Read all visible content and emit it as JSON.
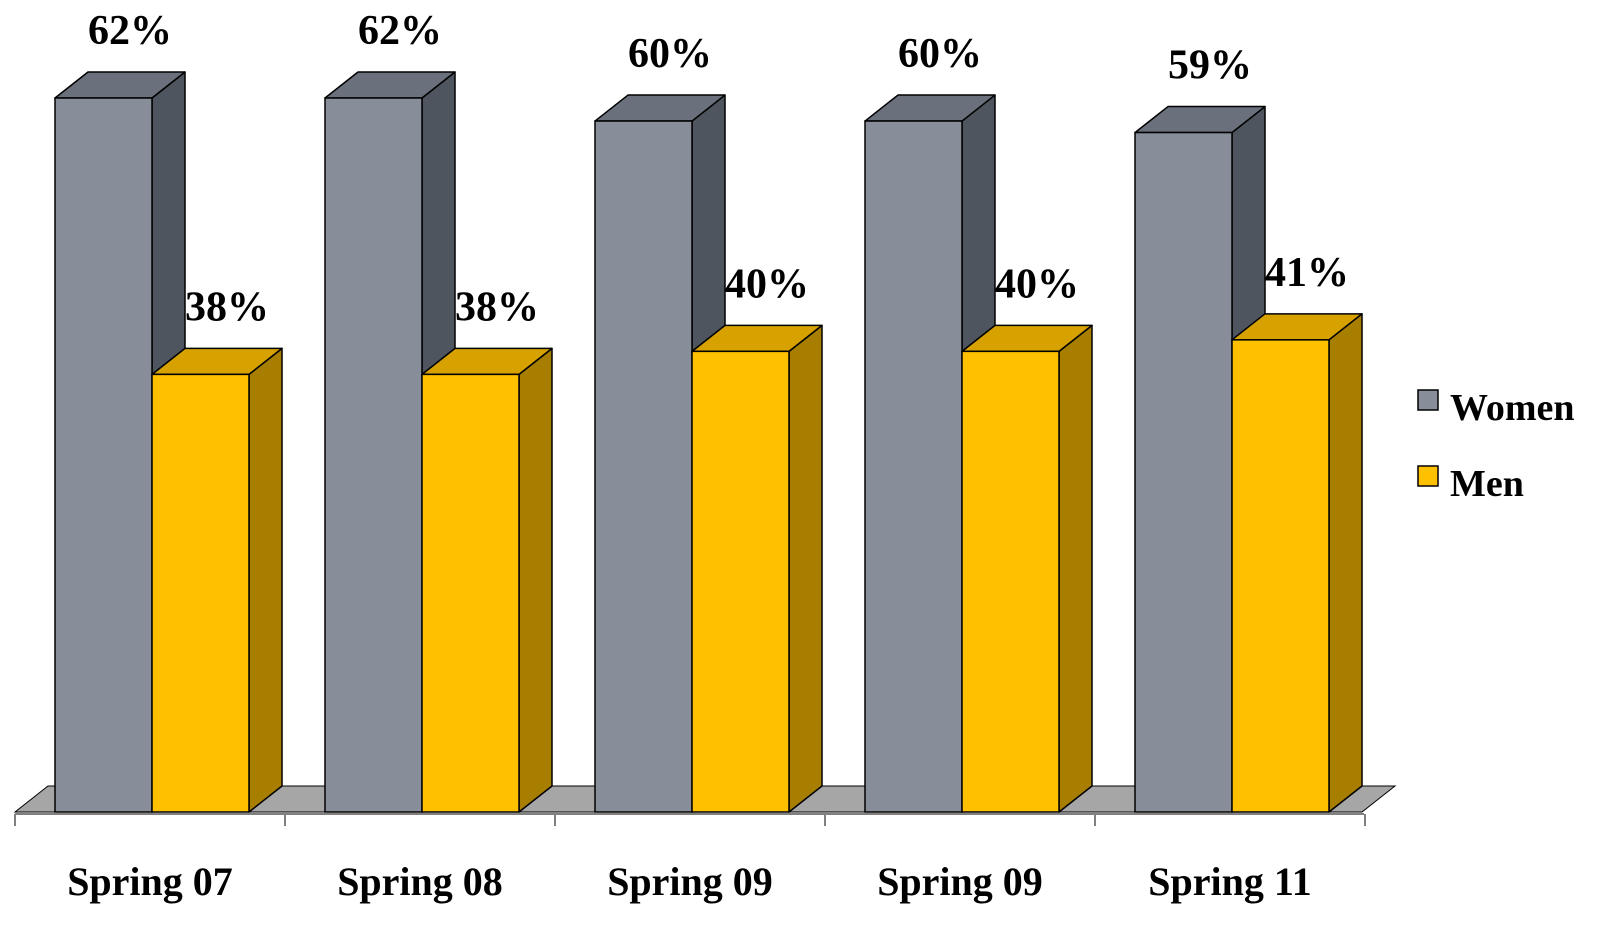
{
  "chart_data": {
    "type": "bar",
    "style": "3d-clustered-column",
    "categories": [
      "Spring 07",
      "Spring 08",
      "Spring 09",
      "Spring 09",
      "Spring 11"
    ],
    "series": [
      {
        "name": "Women",
        "values": [
          62,
          62,
          60,
          60,
          59
        ],
        "labels": [
          "62%",
          "62%",
          "60%",
          "60%",
          "59%"
        ],
        "color": "#878E9A",
        "side_color": "#4F555E",
        "top_color": "#6A717C"
      },
      {
        "name": "Men",
        "values": [
          38,
          38,
          40,
          40,
          41
        ],
        "labels": [
          "38%",
          "38%",
          "40%",
          "40%",
          "41%"
        ],
        "color": "#FFC000",
        "side_color": "#A77E00",
        "top_color": "#D7A100"
      }
    ],
    "title": "",
    "xlabel": "",
    "ylabel": "",
    "ylim": [
      0,
      62
    ],
    "grid": false,
    "legend_position": "right"
  }
}
